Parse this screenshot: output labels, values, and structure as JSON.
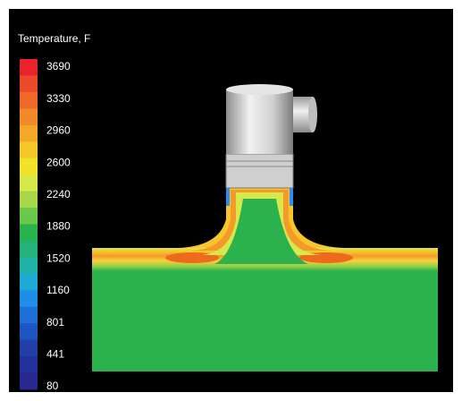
{
  "legend": {
    "title": "Temperature, F",
    "labels": [
      "3690",
      "3330",
      "2960",
      "2600",
      "2240",
      "1880",
      "1520",
      "1160",
      "801",
      "441",
      "80"
    ]
  }
}
